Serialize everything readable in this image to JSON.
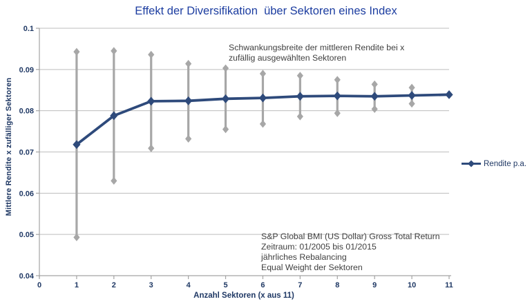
{
  "colors": {
    "background": "#ffffff",
    "title": "#1c3da0",
    "axis_text": "#1f3864",
    "series": "#2e4a7b",
    "error_bar": "#a7a7a7",
    "gridline": "#bdbdbd",
    "axis_line": "#a3a3a3",
    "annotation": "#3f3f3f"
  },
  "chart_data": {
    "type": "line",
    "title": "Effekt der Diversifikation  über Sektoren eines Index",
    "xlabel": "Anzahl Sektoren (x aus 11)",
    "ylabel": "Mittlere Rendite x zufälliger Sektoren",
    "x": [
      1,
      2,
      3,
      4,
      5,
      6,
      7,
      8,
      9,
      10,
      11
    ],
    "series": [
      {
        "name": "Rendite p.a.",
        "values": [
          0.0718,
          0.0788,
          0.0823,
          0.0824,
          0.0829,
          0.0831,
          0.0835,
          0.0836,
          0.0835,
          0.0837,
          0.0839
        ]
      }
    ],
    "error_bars": {
      "description": "Schwankungsbreite (min/max range) der mittleren Rendite",
      "upper": [
        0.0943,
        0.0945,
        0.0936,
        0.0914,
        0.0903,
        0.089,
        0.0885,
        0.0875,
        0.0864,
        0.0856,
        null
      ],
      "lower": [
        0.0493,
        0.063,
        0.0709,
        0.0732,
        0.0755,
        0.0768,
        0.0786,
        0.0794,
        0.0804,
        0.0817,
        null
      ]
    },
    "xlim": [
      0,
      11
    ],
    "ylim": [
      0.04,
      0.1
    ],
    "x_ticks": [
      0,
      1,
      2,
      3,
      4,
      5,
      6,
      7,
      8,
      9,
      10,
      11
    ],
    "y_ticks": [
      0.04,
      0.05,
      0.06,
      0.07,
      0.08,
      0.09,
      0.1
    ],
    "grid": "horizontal",
    "legend_position": "right",
    "annotations": {
      "range_note": [
        "Schwankungsbreite der mittleren Rendite bei x",
        "zufällig ausgewählten Sektoren"
      ],
      "source_note": [
        "S&P Global BMI (US Dollar) Gross Total Return",
        "Zeitraum: 01/2005 bis 01/2015",
        "jährliches Rebalancing",
        "Equal Weight der Sektoren"
      ]
    }
  }
}
